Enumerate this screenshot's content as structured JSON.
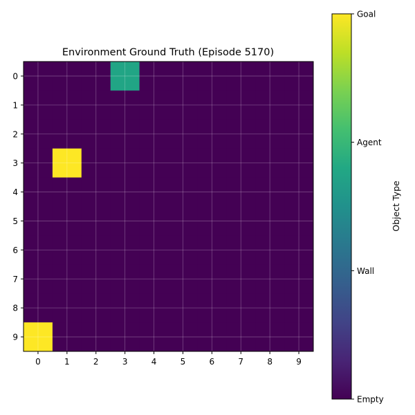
{
  "chart_data": {
    "type": "heatmap",
    "title": "Environment Ground Truth (Episode 5170)",
    "xlabel": "",
    "ylabel": "",
    "x_ticks": [
      "0",
      "1",
      "2",
      "3",
      "4",
      "5",
      "6",
      "7",
      "8",
      "9"
    ],
    "y_ticks": [
      "0",
      "1",
      "2",
      "3",
      "4",
      "5",
      "6",
      "7",
      "8",
      "9"
    ],
    "grid": true,
    "cells": [
      [
        0,
        0,
        0,
        2,
        0,
        0,
        0,
        0,
        0,
        0
      ],
      [
        0,
        0,
        0,
        0,
        0,
        0,
        0,
        0,
        0,
        0
      ],
      [
        0,
        0,
        0,
        0,
        0,
        0,
        0,
        0,
        0,
        0
      ],
      [
        0,
        3,
        0,
        0,
        0,
        0,
        0,
        0,
        0,
        0
      ],
      [
        0,
        0,
        0,
        0,
        0,
        0,
        0,
        0,
        0,
        0
      ],
      [
        0,
        0,
        0,
        0,
        0,
        0,
        0,
        0,
        0,
        0
      ],
      [
        0,
        0,
        0,
        0,
        0,
        0,
        0,
        0,
        0,
        0
      ],
      [
        0,
        0,
        0,
        0,
        0,
        0,
        0,
        0,
        0,
        0
      ],
      [
        0,
        0,
        0,
        0,
        0,
        0,
        0,
        0,
        0,
        0
      ],
      [
        3,
        0,
        0,
        0,
        0,
        0,
        0,
        0,
        0,
        0
      ]
    ],
    "colorbar": {
      "label": "Object Type",
      "range": [
        0,
        3
      ],
      "colormap": "viridis",
      "ticks": [
        {
          "value": 0,
          "label": "Empty"
        },
        {
          "value": 1,
          "label": "Wall"
        },
        {
          "value": 2,
          "label": "Agent"
        },
        {
          "value": 3,
          "label": "Goal"
        }
      ]
    },
    "colors": {
      "empty": "#440154",
      "agent": "#21a585",
      "goal": "#fde725",
      "grid_line": "#ffffff"
    }
  }
}
